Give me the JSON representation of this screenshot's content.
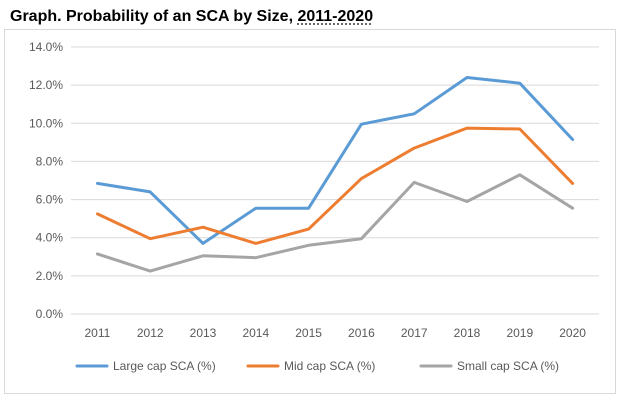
{
  "title": {
    "prefix": "Graph. Probability of an SCA by Size, ",
    "years": "2011-2020"
  },
  "chart_data": {
    "type": "line",
    "categories": [
      "2011",
      "2012",
      "2013",
      "2014",
      "2015",
      "2016",
      "2017",
      "2018",
      "2019",
      "2020"
    ],
    "series": [
      {
        "name": "Large cap SCA (%)",
        "color": "#5b9bd5",
        "values": [
          6.85,
          6.4,
          3.7,
          5.55,
          5.55,
          9.95,
          10.5,
          12.4,
          12.1,
          9.15
        ]
      },
      {
        "name": "Mid cap SCA (%)",
        "color": "#ed7d31",
        "values": [
          5.25,
          3.95,
          4.55,
          3.7,
          4.45,
          7.1,
          8.7,
          9.75,
          9.7,
          6.85
        ]
      },
      {
        "name": "Small cap SCA (%)",
        "color": "#a5a5a5",
        "values": [
          3.15,
          2.25,
          3.05,
          2.95,
          3.6,
          3.95,
          6.9,
          5.9,
          7.3,
          5.55
        ]
      }
    ],
    "yticks": [
      "0.0%",
      "2.0%",
      "4.0%",
      "6.0%",
      "8.0%",
      "10.0%",
      "12.0%",
      "14.0%"
    ],
    "ylim": [
      0,
      14
    ],
    "grid": true,
    "legend": "bottom"
  }
}
